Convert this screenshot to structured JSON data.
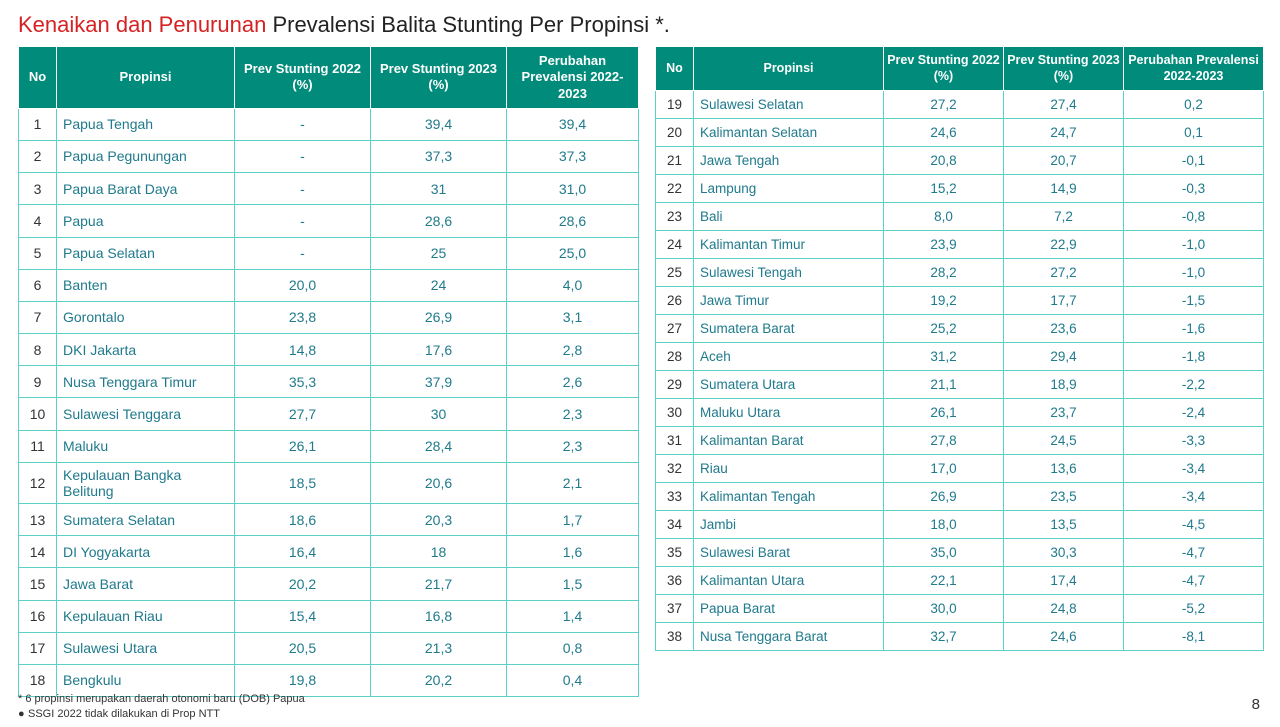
{
  "title": {
    "highlight": "Kenaikan dan Penurunan",
    "rest": " Prevalensi Balita Stunting Per Propinsi *."
  },
  "headers": {
    "no": "No",
    "prov": "Propinsi",
    "p2022": "Prev Stunting 2022 (%)",
    "p2023": "Prev Stunting 2023 (%)",
    "change": "Perubahan Prevalensi 2022-2023",
    "p2022_short": "Prev Stunting 2022 (%)",
    "p2023_short": "Prev Stunting 2023 (%)"
  },
  "left_rows": [
    {
      "no": "1",
      "prov": "Papua Tengah",
      "p22": "-",
      "p23": "39,4",
      "chg": "39,4"
    },
    {
      "no": "2",
      "prov": "Papua Pegunungan",
      "p22": "-",
      "p23": "37,3",
      "chg": "37,3"
    },
    {
      "no": "3",
      "prov": "Papua Barat Daya",
      "p22": "-",
      "p23": "31",
      "chg": "31,0"
    },
    {
      "no": "4",
      "prov": "Papua",
      "p22": "-",
      "p23": "28,6",
      "chg": "28,6"
    },
    {
      "no": "5",
      "prov": "Papua Selatan",
      "p22": "-",
      "p23": "25",
      "chg": "25,0"
    },
    {
      "no": "6",
      "prov": "Banten",
      "p22": "20,0",
      "p23": "24",
      "chg": "4,0"
    },
    {
      "no": "7",
      "prov": "Gorontalo",
      "p22": "23,8",
      "p23": "26,9",
      "chg": "3,1"
    },
    {
      "no": "8",
      "prov": "DKI Jakarta",
      "p22": "14,8",
      "p23": "17,6",
      "chg": "2,8"
    },
    {
      "no": "9",
      "prov": "Nusa Tenggara Timur",
      "p22": "35,3",
      "p23": "37,9",
      "chg": "2,6"
    },
    {
      "no": "10",
      "prov": "Sulawesi Tenggara",
      "p22": "27,7",
      "p23": "30",
      "chg": "2,3"
    },
    {
      "no": "11",
      "prov": "Maluku",
      "p22": "26,1",
      "p23": "28,4",
      "chg": "2,3"
    },
    {
      "no": "12",
      "prov": "Kepulauan Bangka Belitung",
      "p22": "18,5",
      "p23": "20,6",
      "chg": "2,1"
    },
    {
      "no": "13",
      "prov": "Sumatera Selatan",
      "p22": "18,6",
      "p23": "20,3",
      "chg": "1,7"
    },
    {
      "no": "14",
      "prov": "DI Yogyakarta",
      "p22": "16,4",
      "p23": "18",
      "chg": "1,6"
    },
    {
      "no": "15",
      "prov": "Jawa Barat",
      "p22": "20,2",
      "p23": "21,7",
      "chg": "1,5"
    },
    {
      "no": "16",
      "prov": "Kepulauan Riau",
      "p22": "15,4",
      "p23": "16,8",
      "chg": "1,4"
    },
    {
      "no": "17",
      "prov": "Sulawesi Utara",
      "p22": "20,5",
      "p23": "21,3",
      "chg": "0,8"
    },
    {
      "no": "18",
      "prov": "Bengkulu",
      "p22": "19,8",
      "p23": "20,2",
      "chg": "0,4"
    }
  ],
  "right_rows": [
    {
      "no": "19",
      "prov": "Sulawesi Selatan",
      "p22": "27,2",
      "p23": "27,4",
      "chg": "0,2"
    },
    {
      "no": "20",
      "prov": "Kalimantan Selatan",
      "p22": "24,6",
      "p23": "24,7",
      "chg": "0,1"
    },
    {
      "no": "21",
      "prov": "Jawa Tengah",
      "p22": "20,8",
      "p23": "20,7",
      "chg": "-0,1"
    },
    {
      "no": "22",
      "prov": "Lampung",
      "p22": "15,2",
      "p23": "14,9",
      "chg": "-0,3"
    },
    {
      "no": "23",
      "prov": "Bali",
      "p22": "8,0",
      "p23": "7,2",
      "chg": "-0,8"
    },
    {
      "no": "24",
      "prov": "Kalimantan Timur",
      "p22": "23,9",
      "p23": "22,9",
      "chg": "-1,0"
    },
    {
      "no": "25",
      "prov": "Sulawesi Tengah",
      "p22": "28,2",
      "p23": "27,2",
      "chg": "-1,0"
    },
    {
      "no": "26",
      "prov": "Jawa Timur",
      "p22": "19,2",
      "p23": "17,7",
      "chg": "-1,5"
    },
    {
      "no": "27",
      "prov": "Sumatera Barat",
      "p22": "25,2",
      "p23": "23,6",
      "chg": "-1,6"
    },
    {
      "no": "28",
      "prov": "Aceh",
      "p22": "31,2",
      "p23": "29,4",
      "chg": "-1,8"
    },
    {
      "no": "29",
      "prov": "Sumatera Utara",
      "p22": "21,1",
      "p23": "18,9",
      "chg": "-2,2"
    },
    {
      "no": "30",
      "prov": "Maluku Utara",
      "p22": "26,1",
      "p23": "23,7",
      "chg": "-2,4"
    },
    {
      "no": "31",
      "prov": "Kalimantan Barat",
      "p22": "27,8",
      "p23": "24,5",
      "chg": "-3,3"
    },
    {
      "no": "32",
      "prov": "Riau",
      "p22": "17,0",
      "p23": "13,6",
      "chg": "-3,4"
    },
    {
      "no": "33",
      "prov": "Kalimantan Tengah",
      "p22": "26,9",
      "p23": "23,5",
      "chg": "-3,4"
    },
    {
      "no": "34",
      "prov": "Jambi",
      "p22": "18,0",
      "p23": "13,5",
      "chg": "-4,5"
    },
    {
      "no": "35",
      "prov": "Sulawesi Barat",
      "p22": "35,0",
      "p23": "30,3",
      "chg": "-4,7"
    },
    {
      "no": "36",
      "prov": "Kalimantan Utara",
      "p22": "22,1",
      "p23": "17,4",
      "chg": "-4,7"
    },
    {
      "no": "37",
      "prov": "Papua Barat",
      "p22": "30,0",
      "p23": "24,8",
      "chg": "-5,2"
    },
    {
      "no": "38",
      "prov": "Nusa Tenggara Barat",
      "p22": "32,7",
      "p23": "24,6",
      "chg": "-8,1"
    }
  ],
  "footnotes": {
    "line1": "* 6 propinsi merupakan daerah otonomi baru (DOB) Papua",
    "line2": "SSGI 2022 tidak dilakukan di Prop NTT"
  },
  "page_number": "8",
  "style": {
    "header_bg": "#008b7a",
    "header_fg": "#ffffff",
    "cell_border": "#5ad0c8",
    "prov_text": "#1f7a8c",
    "title_highlight": "#d62222",
    "background": "#ffffff"
  }
}
